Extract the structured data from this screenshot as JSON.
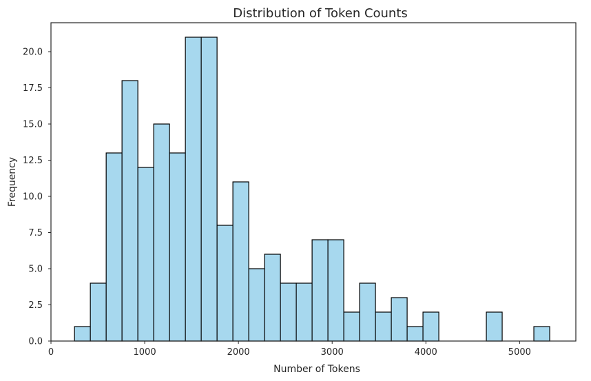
{
  "chart_data": {
    "type": "bar",
    "subtype": "histogram",
    "title": "Distribution of Token Counts",
    "xlabel": "Number of Tokens",
    "ylabel": "Frequency",
    "xlim": [
      0,
      5600
    ],
    "ylim": [
      0,
      22
    ],
    "x_ticks": [
      0,
      1000,
      2000,
      3000,
      4000,
      5000
    ],
    "x_tick_labels": [
      "0",
      "1000",
      "2000",
      "3000",
      "4000",
      "5000"
    ],
    "y_ticks": [
      0,
      2.5,
      5,
      7.5,
      10,
      12.5,
      15,
      17.5,
      20
    ],
    "y_tick_labels": [
      "0.0",
      "2.5",
      "5.0",
      "7.5",
      "10.0",
      "12.5",
      "15.0",
      "17.5",
      "20.0"
    ],
    "grid": false,
    "bin_edges": [
      251,
      420,
      589,
      758,
      927,
      1096,
      1265,
      1434,
      1603,
      1772,
      1941,
      2110,
      2279,
      2448,
      2617,
      2786,
      2955,
      3124,
      3293,
      3462,
      3631,
      3800,
      3969,
      4138,
      4307,
      4476,
      4645,
      4814,
      4983,
      5152,
      5321
    ],
    "values": [
      1,
      4,
      13,
      18,
      12,
      15,
      13,
      21,
      21,
      8,
      11,
      5,
      6,
      4,
      4,
      7,
      7,
      2,
      4,
      2,
      3,
      1,
      2,
      0,
      0,
      0,
      2,
      0,
      0,
      1
    ],
    "colors": {
      "bar_fill": "#a7d8ee",
      "bar_edge": "#000000",
      "axes": "#262626"
    }
  }
}
